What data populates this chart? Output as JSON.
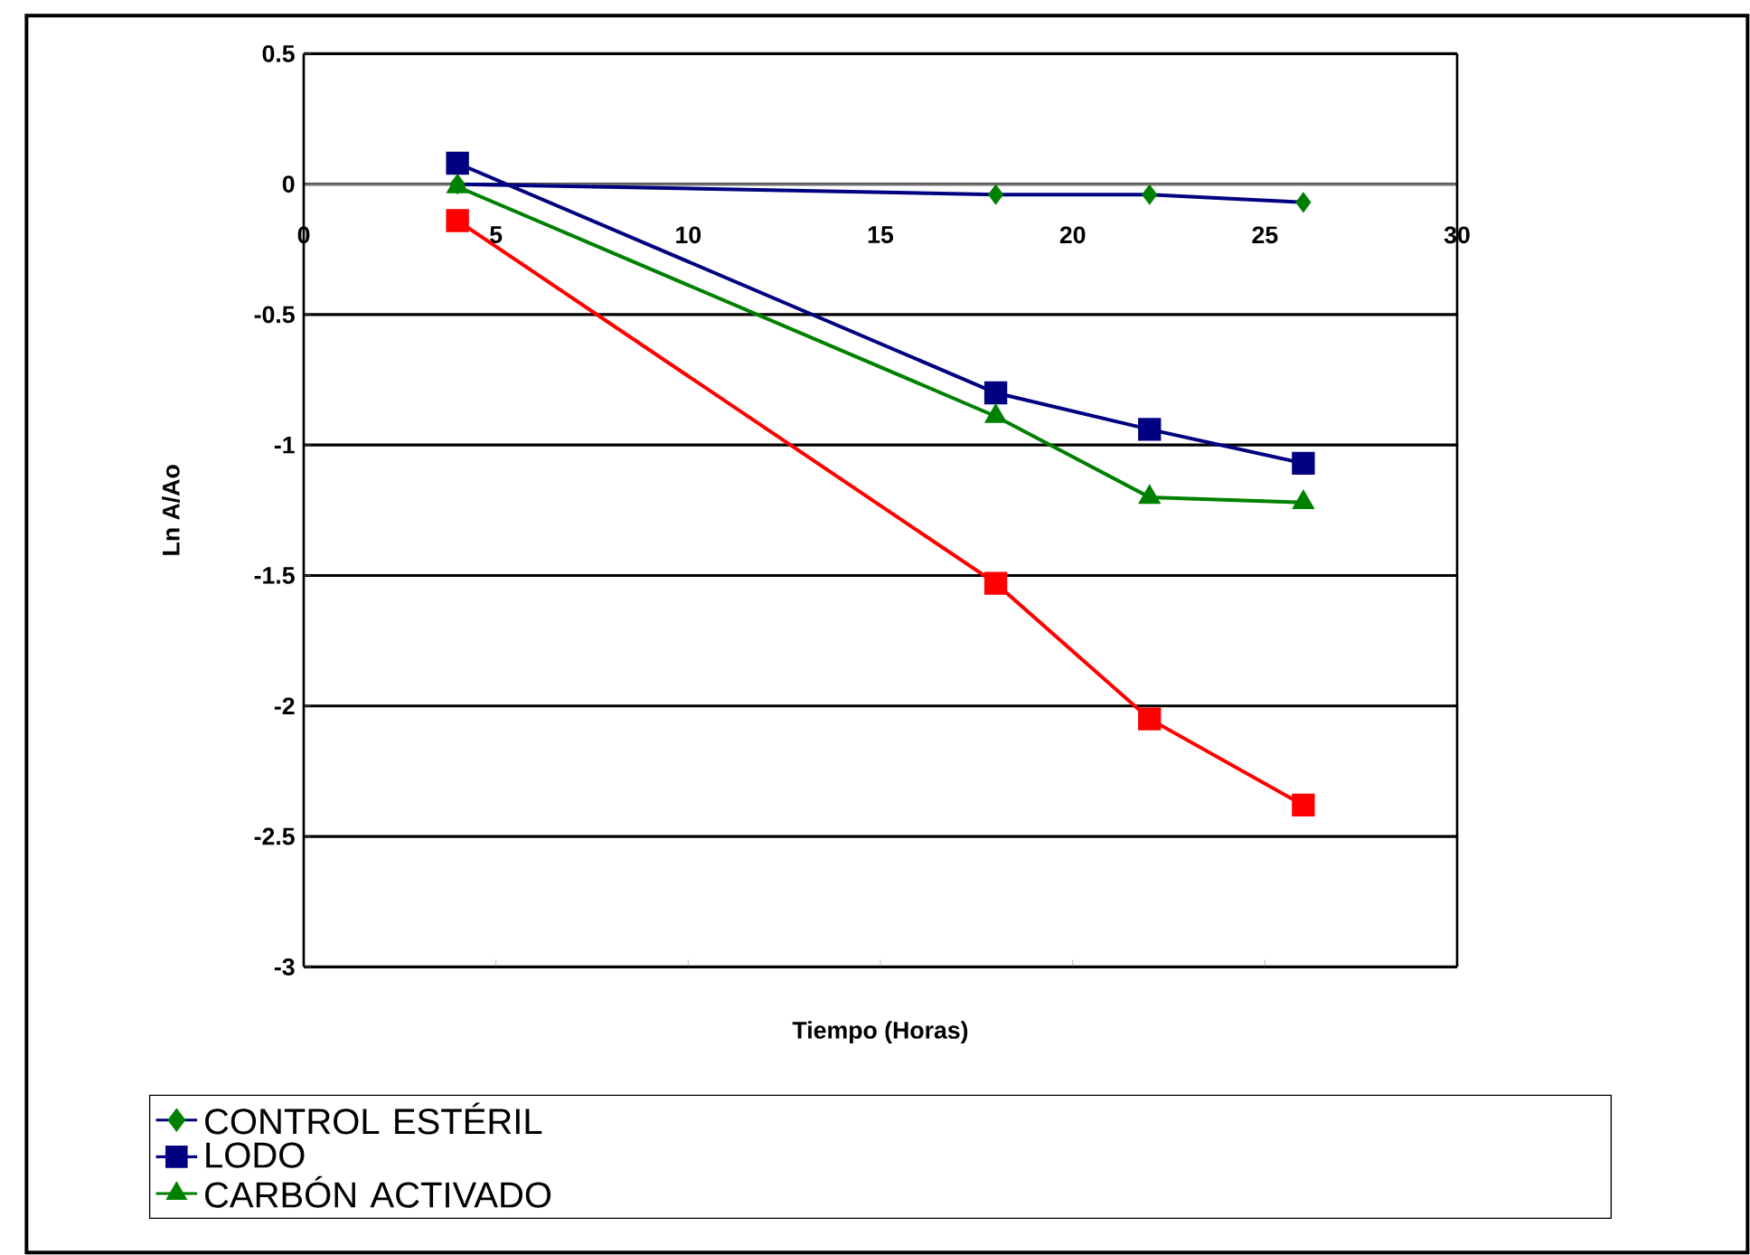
{
  "chart_data": {
    "type": "line",
    "xlabel": "Tiempo (Horas)",
    "ylabel": "Ln A/Ao",
    "xlim": [
      0,
      30
    ],
    "xticks": [
      0,
      5,
      10,
      15,
      20,
      25,
      30
    ],
    "ylim": [
      -3,
      0.5
    ],
    "yticks": [
      0.5,
      0,
      -0.5,
      -1,
      -1.5,
      -2,
      -2.5,
      -3
    ],
    "grid": "y",
    "legend": "bottom",
    "series": [
      {
        "name": "CONTROL ESTÉRIL",
        "color": "#000080",
        "colors": [
          "#008000",
          "#008000",
          "#008000",
          "#008000"
        ],
        "marker": "diamond",
        "x": [
          4,
          18,
          22,
          26
        ],
        "values": [
          0,
          -0.04,
          -0.04,
          -0.07
        ]
      },
      {
        "name": "LODO",
        "color": "#000080",
        "marker": "square",
        "x": [
          4,
          18,
          22,
          26
        ],
        "values": [
          0.08,
          -0.8,
          -0.94,
          -1.07
        ]
      },
      {
        "name": "CARBÓN ACTIVADO",
        "color": "#008000",
        "marker": "triangle",
        "x": [
          4,
          18,
          22,
          26
        ],
        "values": [
          -0.01,
          -0.89,
          -1.2,
          -1.22
        ]
      },
      {
        "color": "#ff0000",
        "marker": "square",
        "x": [
          4,
          18,
          22,
          26
        ],
        "values": [
          -0.14,
          -1.53,
          -2.05,
          -2.38
        ]
      }
    ]
  }
}
